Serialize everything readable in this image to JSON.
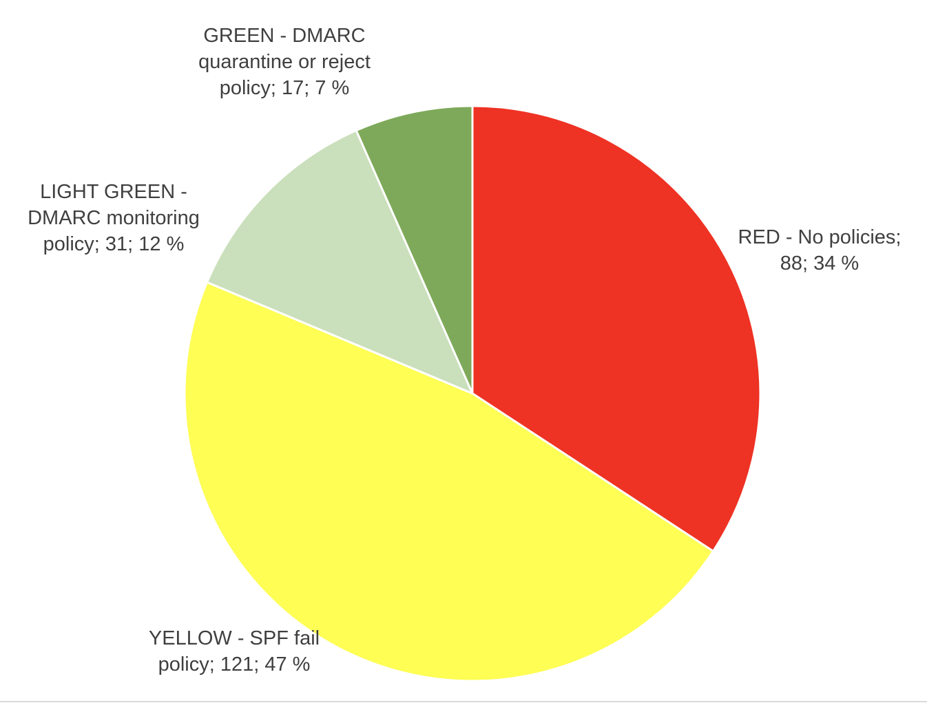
{
  "chart_data": {
    "type": "pie",
    "title": "",
    "start_angle_deg": 0,
    "direction": "clockwise",
    "slices": [
      {
        "label": "RED - No policies",
        "value": 88,
        "percent": 34,
        "color": "#ee3224"
      },
      {
        "label": "YELLOW - SPF fail policy",
        "value": 121,
        "percent": 47,
        "color": "#fefe55"
      },
      {
        "label": "LIGHT GREEN - DMARC monitoring policy",
        "value": 31,
        "percent": 12,
        "color": "#cadfbb"
      },
      {
        "label": "GREEN - DMARC quarantine or reject policy",
        "value": 17,
        "percent": 7,
        "color": "#7ea95a"
      }
    ],
    "data_labels": [
      {
        "line1": "RED - No policies;",
        "line2": "88; 34 %"
      },
      {
        "line1": "YELLOW - SPF fail",
        "line2": "policy; 121; 47 %"
      },
      {
        "line1": "LIGHT GREEN -",
        "line2": "DMARC monitoring",
        "line3": "policy; 31; 12 %"
      },
      {
        "line1": "GREEN - DMARC",
        "line2": "quarantine or reject",
        "line3": "policy; 17; 7 %"
      }
    ],
    "legend": "none",
    "slice_border_color": "#ffffff"
  }
}
